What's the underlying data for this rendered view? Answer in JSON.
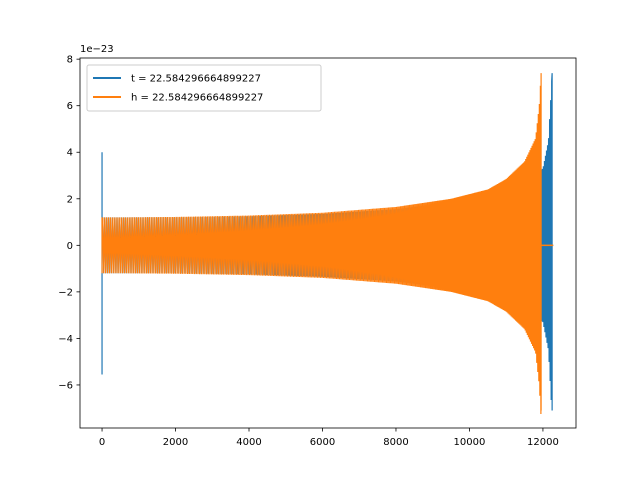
{
  "chart_data": {
    "type": "line",
    "title": "",
    "xlabel": "",
    "ylabel": "",
    "y_scale_label": "1e−23",
    "xlim": [
      -600,
      12900
    ],
    "ylim": [
      -7.85,
      8.05
    ],
    "x_ticks": [
      0,
      2000,
      4000,
      6000,
      8000,
      10000,
      12000
    ],
    "x_tick_labels": [
      "0",
      "2000",
      "4000",
      "6000",
      "8000",
      "10000",
      "12000"
    ],
    "y_ticks": [
      -6,
      -4,
      -2,
      0,
      2,
      4,
      6,
      8
    ],
    "y_tick_labels": [
      "−6",
      "−4",
      "−2",
      "0",
      "2",
      "4",
      "6",
      "8"
    ],
    "grid": false,
    "legend_position": "upper-left",
    "series": [
      {
        "name": "t = 22.584296664899227",
        "color": "#1f77b4",
        "start_spike": {
          "x": 0,
          "max": 4.0,
          "min": -5.55
        },
        "envelope_x": [
          0,
          500,
          2000,
          4000,
          6000,
          8000,
          9500,
          10500,
          11000,
          11500,
          11800,
          12000,
          12150,
          12250,
          12300
        ],
        "envelope_amplitude": [
          1.2,
          1.2,
          1.2,
          1.25,
          1.35,
          1.55,
          1.85,
          2.15,
          2.45,
          2.85,
          3.1,
          3.3,
          4.5,
          7.4,
          7.4
        ],
        "end_spike": {
          "x": 12250,
          "max": 7.4,
          "min": -7.1
        },
        "x_end": 12280
      },
      {
        "name": "h = 22.584296664899227",
        "color": "#ff7f0e",
        "start_spike": {
          "x": 0,
          "max": 1.2,
          "min": -1.2
        },
        "envelope_x": [
          0,
          500,
          2000,
          4000,
          6000,
          8000,
          9500,
          10500,
          11000,
          11500,
          11800,
          11900,
          11950
        ],
        "envelope_amplitude": [
          1.2,
          1.2,
          1.22,
          1.28,
          1.4,
          1.65,
          2.0,
          2.4,
          2.85,
          3.6,
          4.6,
          6.0,
          7.4
        ],
        "end_spike": {
          "x": 11950,
          "max": 7.4,
          "min": -7.1
        },
        "x_end": 11960,
        "flat_after": {
          "x_start": 11960,
          "x_end": 12280,
          "y": 0
        }
      }
    ]
  }
}
